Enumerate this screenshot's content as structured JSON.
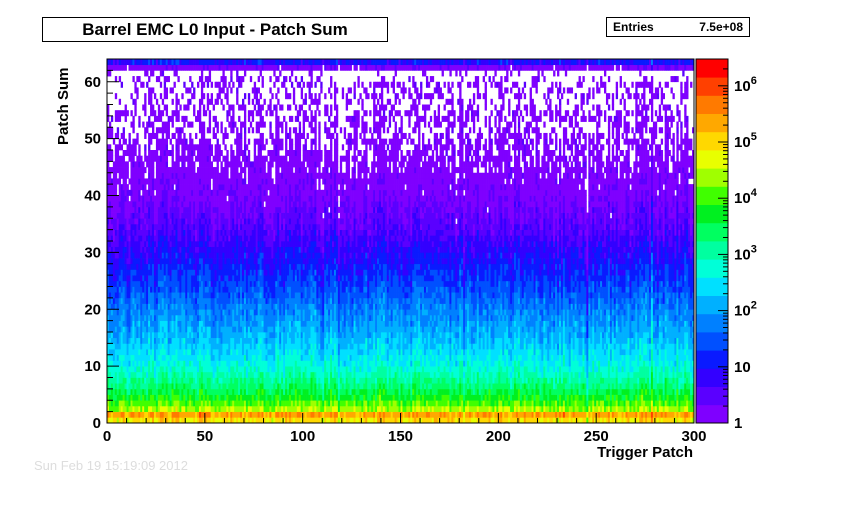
{
  "chart_data": {
    "type": "heatmap",
    "title": "Barrel EMC L0 Input - Patch Sum",
    "xlabel": "Trigger Patch",
    "ylabel": "Patch Sum",
    "xlim": [
      0,
      300
    ],
    "ylim": [
      0,
      64
    ],
    "x_ticks": [
      "0",
      "50",
      "100",
      "150",
      "200",
      "250",
      "300"
    ],
    "y_ticks": [
      "0",
      "10",
      "20",
      "30",
      "40",
      "50",
      "60"
    ],
    "color_scale": "log",
    "z_range": [
      1,
      3000000
    ],
    "colorbar_ticks": [
      {
        "value": 1,
        "label": "1"
      },
      {
        "value": 10,
        "label": "10"
      },
      {
        "value": 100,
        "label": "10",
        "exp": "2"
      },
      {
        "value": 1000,
        "label": "10",
        "exp": "3"
      },
      {
        "value": 10000,
        "label": "10",
        "exp": "4"
      },
      {
        "value": 100000,
        "label": "10",
        "exp": "5"
      },
      {
        "value": 1000000,
        "label": "10",
        "exp": "6"
      }
    ],
    "stats": {
      "label": "Entries",
      "value": "7.5e+08"
    },
    "bins_x": 300,
    "bins_y": 64,
    "density_by_patch_sum": [
      {
        "y": 0,
        "z": 5000
      },
      {
        "y": 1,
        "z": 1500000
      },
      {
        "y": 2,
        "z": 40000
      },
      {
        "y": 4,
        "z": 8000
      },
      {
        "y": 6,
        "z": 2500
      },
      {
        "y": 10,
        "z": 500
      },
      {
        "y": 15,
        "z": 150
      },
      {
        "y": 20,
        "z": 60
      },
      {
        "y": 25,
        "z": 20
      },
      {
        "y": 30,
        "z": 8
      },
      {
        "y": 35,
        "z": 3
      },
      {
        "y": 40,
        "z": 1.5
      },
      {
        "y": 50,
        "z": 0.5
      },
      {
        "y": 60,
        "z": 0.3
      },
      {
        "y": 62,
        "z": 0.15
      },
      {
        "y": 63,
        "z": 10
      }
    ],
    "hot_patches": [
      {
        "x": 118,
        "factor": 0.3
      },
      {
        "x": 182,
        "factor": 0.3
      },
      {
        "x": 278,
        "factor": 3.0
      },
      {
        "x": 110,
        "factor": 0.2
      },
      {
        "x": 245,
        "factor": 0.3
      }
    ],
    "colors": [
      "#7f00ff",
      "#5a00ff",
      "#3300ff",
      "#0a1aff",
      "#0050ff",
      "#0080ff",
      "#00b0ff",
      "#00e0ff",
      "#00ffd8",
      "#00ffa0",
      "#00ff60",
      "#00f020",
      "#40ff00",
      "#a0ff00",
      "#e8ff00",
      "#ffd800",
      "#ffa800",
      "#ff7a00",
      "#ff4000",
      "#ff0000"
    ]
  },
  "footer_text": "Sun Feb 19 15:19:09 2012"
}
